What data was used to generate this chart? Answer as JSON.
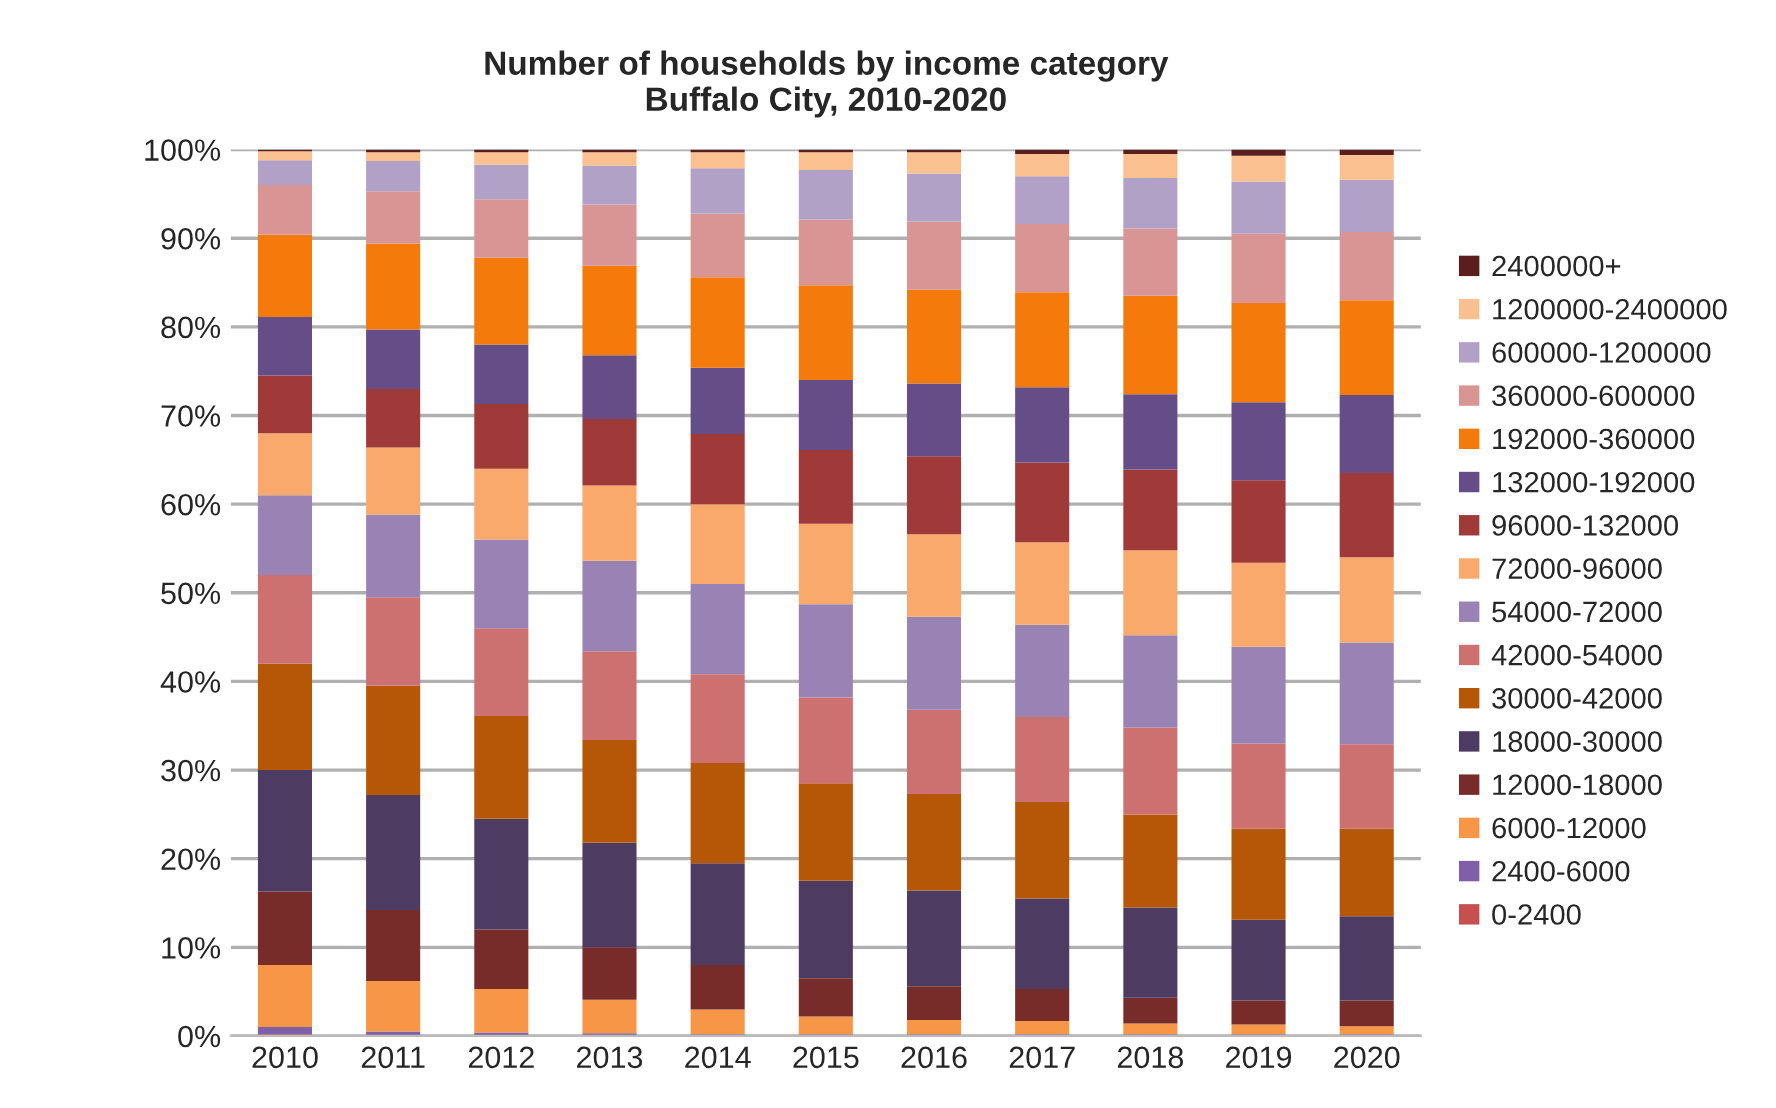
{
  "chart_data": {
    "type": "bar",
    "stacked": true,
    "title": "Number of households by income category\nBuffalo City, 2010-2020",
    "categories": [
      "2010",
      "2011",
      "2012",
      "2013",
      "2014",
      "2015",
      "2016",
      "2017",
      "2018",
      "2019",
      "2020"
    ],
    "series": [
      {
        "name": "0-2400",
        "color": "#c84f4f",
        "values": [
          0.2,
          0.1,
          0.1,
          0.1,
          0.1,
          0.1,
          0.1,
          0.1,
          0.1,
          0.1,
          0.1
        ]
      },
      {
        "name": "2400-6000",
        "color": "#7f5fa8",
        "values": [
          0.8,
          0.4,
          0.3,
          0.2,
          0.1,
          0.1,
          0.1,
          0.1,
          0.1,
          0.1,
          0.1
        ]
      },
      {
        "name": "6000-12000",
        "color": "#f79646",
        "values": [
          7.0,
          5.7,
          4.9,
          3.8,
          2.8,
          2.0,
          1.6,
          1.5,
          1.2,
          1.1,
          0.9
        ]
      },
      {
        "name": "12000-18000",
        "color": "#772c2a",
        "values": [
          8.3,
          8.0,
          6.7,
          5.9,
          5.0,
          4.3,
          3.8,
          3.6,
          2.9,
          2.7,
          2.9
        ]
      },
      {
        "name": "18000-30000",
        "color": "#4d3b62",
        "values": [
          13.7,
          13.0,
          12.5,
          11.8,
          11.5,
          11.0,
          10.8,
          10.2,
          10.2,
          9.1,
          9.5
        ]
      },
      {
        "name": "30000-42000",
        "color": "#b65708",
        "values": [
          12.0,
          12.3,
          11.6,
          11.6,
          11.3,
          11.0,
          10.9,
          10.9,
          10.5,
          10.3,
          9.9
        ]
      },
      {
        "name": "42000-54000",
        "color": "#cc7170",
        "values": [
          10.0,
          10.0,
          9.9,
          10.0,
          10.0,
          9.7,
          9.5,
          9.6,
          9.8,
          9.6,
          9.5
        ]
      },
      {
        "name": "54000-72000",
        "color": "#9983b5",
        "values": [
          9.0,
          9.3,
          10.0,
          10.2,
          10.2,
          10.5,
          10.5,
          10.4,
          10.4,
          10.9,
          11.5
        ]
      },
      {
        "name": "72000-96000",
        "color": "#f9a96b",
        "values": [
          7.0,
          7.6,
          8.0,
          8.5,
          9.0,
          9.1,
          9.3,
          9.3,
          9.6,
          9.5,
          9.6
        ]
      },
      {
        "name": "96000-132000",
        "color": "#a03a38",
        "values": [
          6.5,
          6.6,
          7.3,
          7.5,
          7.9,
          8.3,
          8.8,
          9.0,
          9.1,
          9.3,
          9.5
        ]
      },
      {
        "name": "132000-192000",
        "color": "#654d87",
        "values": [
          6.6,
          6.7,
          6.7,
          7.2,
          7.5,
          7.9,
          8.2,
          8.5,
          8.5,
          8.8,
          8.8
        ]
      },
      {
        "name": "192000-360000",
        "color": "#f47a0c",
        "values": [
          9.3,
          9.7,
          9.8,
          10.1,
          10.2,
          10.7,
          10.6,
          10.7,
          11.1,
          11.2,
          10.7
        ]
      },
      {
        "name": "360000-600000",
        "color": "#d99594",
        "values": [
          5.6,
          5.9,
          6.6,
          6.9,
          7.2,
          7.4,
          7.7,
          7.7,
          7.6,
          7.8,
          7.7
        ]
      },
      {
        "name": "600000-1200000",
        "color": "#b2a1c7",
        "values": [
          2.8,
          3.4,
          3.9,
          4.4,
          5.1,
          5.6,
          5.4,
          5.4,
          5.7,
          5.9,
          5.9
        ]
      },
      {
        "name": "1200000-2400000",
        "color": "#fbc08f",
        "values": [
          1.0,
          1.0,
          1.4,
          1.5,
          1.8,
          2.0,
          2.4,
          2.5,
          2.7,
          2.9,
          2.8
        ]
      },
      {
        "name": "2400000+",
        "color": "#5a1f1d",
        "values": [
          0.2,
          0.3,
          0.3,
          0.3,
          0.3,
          0.3,
          0.3,
          0.5,
          0.5,
          0.7,
          0.6
        ]
      }
    ],
    "ylim": [
      0,
      100
    ],
    "yticks": [
      {
        "value": 0,
        "label": "0%"
      },
      {
        "value": 10,
        "label": "10%"
      },
      {
        "value": 20,
        "label": "20%"
      },
      {
        "value": 30,
        "label": "30%"
      },
      {
        "value": 40,
        "label": "40%"
      },
      {
        "value": 50,
        "label": "50%"
      },
      {
        "value": 60,
        "label": "60%"
      },
      {
        "value": 70,
        "label": "70%"
      },
      {
        "value": 80,
        "label": "80%"
      },
      {
        "value": 90,
        "label": "90%"
      },
      {
        "value": 100,
        "label": "100%"
      }
    ],
    "grid": "y",
    "legend": "right"
  }
}
